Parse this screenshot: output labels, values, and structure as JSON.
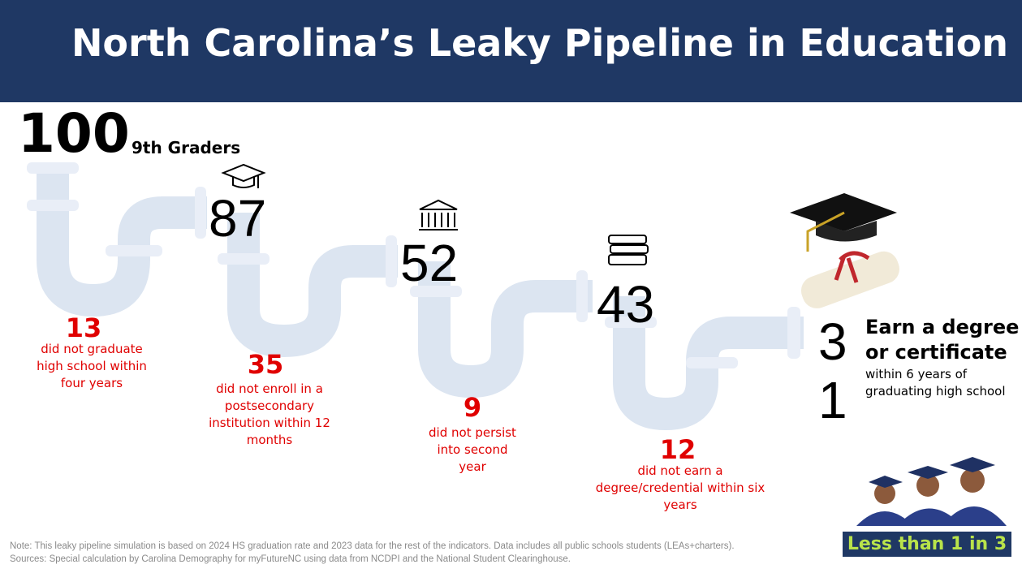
{
  "header": {
    "title": "North Carolina’s Leaky Pipeline in Education"
  },
  "start": {
    "count": 100,
    "label": "9th Graders"
  },
  "stages": [
    {
      "remaining": 87,
      "lost": 13,
      "lost_text": "did not graduate high school within four years"
    },
    {
      "remaining": 52,
      "lost": 35,
      "lost_text": "did not enroll in a postsecondary institution within 12 months"
    },
    {
      "remaining": 43,
      "lost": 9,
      "lost_text": "did not persist into second year"
    },
    {
      "lost": 12,
      "lost_text": "did not earn a degree/credential within six years"
    }
  ],
  "outcome": {
    "count": 31,
    "headline": "Earn a degree or certificate",
    "detail": "within 6 years of graduating high school",
    "badge": "Less than 1 in 3"
  },
  "footer": {
    "note": "Note: This leaky pipeline simulation is based on 2024 HS graduation rate and 2023 data for the rest of the indicators. Data includes all public schools students (LEAs+charters).",
    "sources": "Sources: Special calculation by Carolina Demography for myFutureNC using data from NCDPI and the National Student Clearinghouse."
  }
}
